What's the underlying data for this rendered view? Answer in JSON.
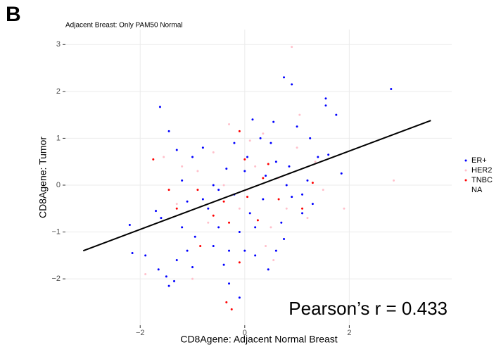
{
  "panel_label": "B",
  "chart_data": {
    "type": "scatter",
    "title": "Adjacent Breast: Only PAM50 Normal",
    "x_label": "CD8Agene: Adjacent Normal Breast",
    "y_label": "CD8Agene: Tumor",
    "annotation": "Pearson’s r = 0.433",
    "xlim": [
      -3.43,
      3.96
    ],
    "ylim": [
      -2.99,
      3.32
    ],
    "xticks": [
      {
        "value": -2,
        "label": "−2"
      },
      0,
      2
    ],
    "yticks": [
      {
        "value": -2,
        "label": "−2"
      },
      {
        "value": -1,
        "label": "−1"
      },
      0,
      1,
      2,
      3
    ],
    "grid": true,
    "legend_position": "right",
    "fit_line": {
      "color": "#000000",
      "x": [
        -3.09,
        3.56
      ],
      "y": [
        -1.4,
        1.38
      ]
    },
    "series": [
      {
        "name": "ER+",
        "color": "#0000ff",
        "x": [
          -2.2,
          -2.15,
          -1.9,
          -1.7,
          -1.65,
          -1.5,
          -1.45,
          -1.35,
          -1.3,
          -1.1,
          -1.0,
          -0.95,
          -1.62,
          -1.45,
          -1.3,
          -1.2,
          -1.1,
          -0.8,
          -0.7,
          -0.6,
          -0.5,
          -0.4,
          -0.35,
          -0.3,
          -0.2,
          -0.1,
          0,
          0.05,
          0.1,
          0.15,
          0.2,
          0.3,
          0.35,
          0.4,
          0.45,
          0.5,
          0.55,
          0.6,
          0.7,
          0.75,
          0.8,
          0.85,
          0.9,
          1.0,
          1.1,
          1.2,
          1.25,
          1.3,
          1.4,
          1.55,
          1.55,
          1.6,
          1.75,
          1.85,
          2.8,
          0.75,
          0.9,
          -0.3,
          -0.1,
          -0.6,
          -0.8,
          -1.0,
          -0.2,
          0.2,
          0.0,
          -0.5,
          0.6,
          1.1,
          -1.2,
          -1.6
        ],
        "y": [
          -0.85,
          -1.45,
          -1.5,
          -0.55,
          -1.8,
          -1.95,
          -2.15,
          -2.05,
          -1.6,
          -1.4,
          -1.75,
          -1.1,
          1.67,
          1.15,
          0.75,
          0.1,
          -0.35,
          0.8,
          -0.5,
          -1.3,
          -0.9,
          -1.7,
          0.35,
          -1.4,
          -0.2,
          -1.0,
          -1.4,
          0.6,
          -0.6,
          1.4,
          -1.5,
          1.0,
          -0.3,
          0.2,
          -1.8,
          0.9,
          1.35,
          0.5,
          -0.8,
          -1.15,
          0.0,
          0.4,
          -0.25,
          1.25,
          -0.6,
          0.1,
          1.0,
          -0.4,
          0.6,
          1.85,
          1.7,
          0.65,
          1.5,
          0.25,
          2.05,
          2.3,
          2.15,
          -2.1,
          -2.4,
          0.0,
          -0.3,
          0.6,
          0.9,
          -0.9,
          0.3,
          -0.1,
          -1.4,
          -0.2,
          -0.9,
          -0.7
        ]
      },
      {
        "name": "HER2",
        "color": "#ffc0cb",
        "x": [
          0.9,
          -1.55,
          -1.2,
          -0.9,
          -0.7,
          -0.4,
          -0.1,
          0.1,
          0.2,
          0.35,
          0.5,
          0.65,
          0.8,
          1.0,
          1.2,
          1.35,
          1.5,
          1.9,
          2.85,
          -1.9,
          -1.0,
          -0.3,
          0.4,
          1.05,
          -0.6,
          0.05,
          0.55,
          -1.3
        ],
        "y": [
          2.95,
          0.6,
          0.4,
          0.3,
          -0.8,
          0.0,
          -0.5,
          0.95,
          0.4,
          1.1,
          -0.9,
          0.15,
          -0.5,
          0.8,
          -0.7,
          0.5,
          -0.1,
          -0.5,
          0.1,
          -1.9,
          -2.0,
          1.3,
          -1.3,
          1.5,
          0.7,
          -0.1,
          -1.6,
          -0.4
        ]
      },
      {
        "name": "TNBC",
        "color": "#ff0000",
        "x": [
          -1.75,
          -1.45,
          -1.3,
          -0.9,
          -0.85,
          -0.6,
          -0.4,
          -0.3,
          -0.1,
          0.05,
          -0.25,
          0.0,
          0.25,
          0.35,
          0.45,
          0.65,
          1.1,
          1.3,
          -0.35,
          -0.1
        ],
        "y": [
          0.55,
          -0.1,
          -0.5,
          -0.1,
          -1.3,
          -0.65,
          -0.35,
          -0.8,
          -1.65,
          -0.25,
          -2.65,
          0.55,
          -0.75,
          0.15,
          0.45,
          -0.3,
          -0.5,
          0.05,
          -2.5,
          1.15
        ]
      },
      {
        "name": "NA",
        "color": "#ffffff",
        "x": [],
        "y": []
      }
    ]
  }
}
